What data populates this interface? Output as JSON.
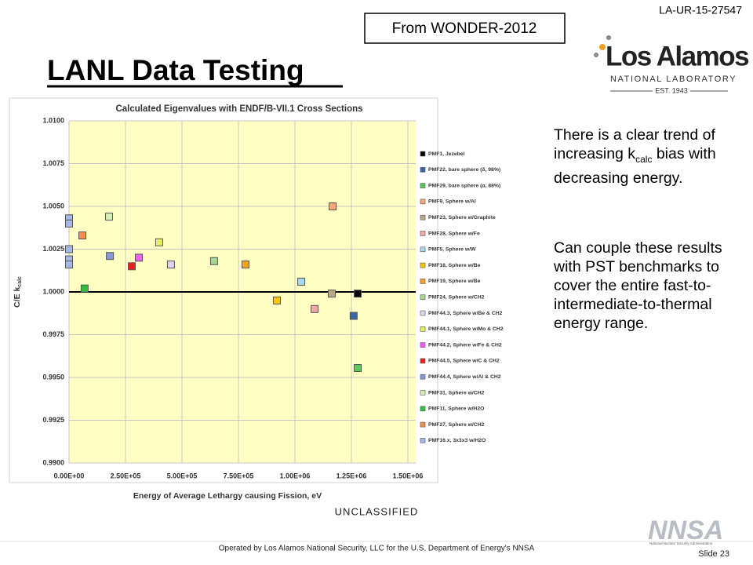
{
  "report_id": "LA-UR-15-27547",
  "source_box": "From WONDER-2012",
  "slide_title": "LANL Data Testing",
  "logo": {
    "name": "Los Alamos",
    "line1": "NATIONAL LABORATORY",
    "line2": "EST. 1943"
  },
  "notes": {
    "p1": [
      "There is a clear trend of increasing k",
      "calc",
      " bias with decreasing energy."
    ],
    "p2": "Can couple these results with PST benchmarks to cover the entire fast-to-intermediate-to-thermal energy range."
  },
  "classification": "UNCLASSIFIED",
  "footer": {
    "operated": "Operated by Los Alamos National Security, LLC for the U.S. Department of Energy's NNSA",
    "slide": "Slide 23",
    "nnsa": "NNSA",
    "nnsa_full": "National Nuclear Security Administration"
  },
  "chart_data": {
    "type": "scatter",
    "title": "Calculated Eigenvalues with ENDF/B-VII.1 Cross Sections",
    "xlabel": "Energy of Average Lethargy causing Fission, eV",
    "ylabel": "C/E k",
    "ylabel_sub": "calc",
    "xlim": [
      0,
      1500000
    ],
    "ylim": [
      0.99,
      1.01
    ],
    "xticks": [
      {
        "value": 0,
        "label": "0.00E+00"
      },
      {
        "value": 250000,
        "label": "2.50E+05"
      },
      {
        "value": 500000,
        "label": "5.00E+05"
      },
      {
        "value": 750000,
        "label": "7.50E+05"
      },
      {
        "value": 1000000,
        "label": "1.00E+06"
      },
      {
        "value": 1250000,
        "label": "1.25E+06"
      },
      {
        "value": 1500000,
        "label": "1.50E+06"
      }
    ],
    "yticks": [
      {
        "value": 0.99,
        "label": "0.9900"
      },
      {
        "value": 0.9925,
        "label": "0.9925"
      },
      {
        "value": 0.995,
        "label": "0.9950"
      },
      {
        "value": 0.9975,
        "label": "0.9975"
      },
      {
        "value": 1.0,
        "label": "1.0000"
      },
      {
        "value": 1.0025,
        "label": "1.0025"
      },
      {
        "value": 1.005,
        "label": "1.0050"
      },
      {
        "value": 1.0075,
        "label": "1.0075"
      },
      {
        "value": 1.01,
        "label": "1.0100"
      }
    ],
    "reference_y": 1.0,
    "grid": true,
    "legend": "right",
    "series": [
      {
        "name": "PMF1, Jezebel",
        "color": "#000000",
        "x": [
          1278000
        ],
        "values": [
          0.9999
        ]
      },
      {
        "name": "PMF22, bare sphere (δ, 98%)",
        "color": "#3a66a8",
        "x": [
          1260000
        ],
        "values": [
          0.9986
        ]
      },
      {
        "name": "PMF29, bare sphere (α, 88%)",
        "color": "#5cc85c",
        "x": [
          1278000
        ],
        "values": [
          0.99555
        ]
      },
      {
        "name": "PMF9, Sphere w/Al",
        "color": "#f6a878",
        "x": [
          1167000
        ],
        "values": [
          1.005
        ]
      },
      {
        "name": "PMF23, Sphere w/Graphite",
        "color": "#b8a888",
        "x": [
          1163000
        ],
        "values": [
          0.9999
        ]
      },
      {
        "name": "PMF28, Sphere w/Fe",
        "color": "#f0a8a8",
        "x": [
          1087000
        ],
        "values": [
          0.999
        ]
      },
      {
        "name": "PMF5, Sphere w/W",
        "color": "#a8d8f0",
        "x": [
          1028000
        ],
        "values": [
          1.0006
        ]
      },
      {
        "name": "PMF18, Sphere w/Be",
        "color": "#f8c800",
        "x": [
          920000
        ],
        "values": [
          0.9995
        ]
      },
      {
        "name": "PMF19, Sphere w/Be",
        "color": "#f8a020",
        "x": [
          781000
        ],
        "values": [
          1.0016
        ]
      },
      {
        "name": "PMF24, Sphere w/CH2",
        "color": "#a8d890",
        "x": [
          642000
        ],
        "values": [
          1.0018
        ]
      },
      {
        "name": "PMF44.3, Sphere w/Be & CH2",
        "color": "#dcd4f0",
        "x": [
          451000
        ],
        "values": [
          1.0016
        ]
      },
      {
        "name": "PMF44.1, Sphere w/Mo & CH2",
        "color": "#e4f060",
        "x": [
          399000
        ],
        "values": [
          1.0029
        ]
      },
      {
        "name": "PMF44.2, Sphere w/Fe & CH2",
        "color": "#f060f0",
        "x": [
          309000
        ],
        "values": [
          1.002
        ]
      },
      {
        "name": "PMF44.5, Sphere w/C & CH2",
        "color": "#e82020",
        "x": [
          278000
        ],
        "values": [
          1.0015
        ]
      },
      {
        "name": "PMF44.4, Sphere w/Al & CH2",
        "color": "#8898d4",
        "x": [
          181000
        ],
        "values": [
          1.0021
        ]
      },
      {
        "name": "PMF31, Sphere w/CH2",
        "color": "#d4f0b8",
        "x": [
          177000
        ],
        "values": [
          1.0044
        ]
      },
      {
        "name": "PMF11, Sphere w/H2O",
        "color": "#30c040",
        "x": [
          69000
        ],
        "values": [
          1.0002
        ]
      },
      {
        "name": "PMF27, Sphere w/CH2",
        "color": "#f09050",
        "x": [
          59000
        ],
        "values": [
          1.0033
        ]
      },
      {
        "name": "PMF16.x, 3x3x3 w/H2O",
        "color": "#a8b8e4",
        "x": [
          0,
          0,
          0,
          0,
          0
        ],
        "values": [
          1.0043,
          1.004,
          1.0025,
          1.0019,
          1.0016
        ]
      }
    ]
  }
}
